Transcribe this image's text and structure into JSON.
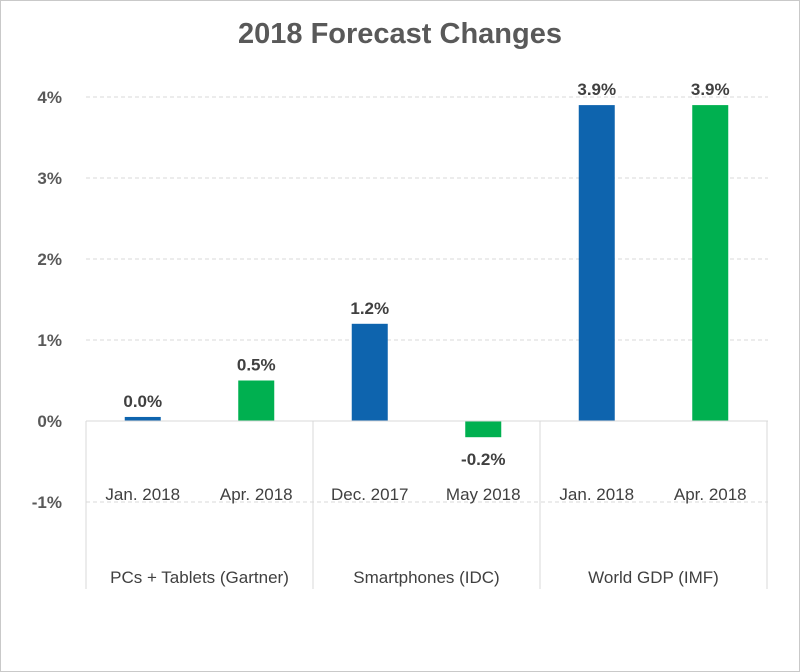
{
  "chart_data": {
    "type": "bar",
    "title": "2018 Forecast Changes",
    "xlabel": "",
    "ylabel": "",
    "ylim": [
      -1,
      4
    ],
    "y_ticks": [
      "-1%",
      "0%",
      "1%",
      "2%",
      "3%",
      "4%"
    ],
    "y_tick_values": [
      -1,
      0,
      1,
      2,
      3,
      4
    ],
    "grid": true,
    "groups": [
      {
        "name": "PCs + Tablets (Gartner)",
        "categories": [
          "Jan. 2018",
          "Apr. 2018"
        ]
      },
      {
        "name": "Smartphones (IDC)",
        "categories": [
          "Dec. 2017",
          "May 2018"
        ]
      },
      {
        "name": "World GDP (IMF)",
        "categories": [
          "Jan. 2018",
          "Apr. 2018"
        ]
      }
    ],
    "categories": [
      "Jan. 2018",
      "Apr. 2018",
      "Dec. 2017",
      "May 2018",
      "Jan. 2018",
      "Apr. 2018"
    ],
    "values": [
      0.05,
      0.5,
      1.2,
      -0.2,
      3.9,
      3.9
    ],
    "data_labels": [
      "0.0%",
      "0.5%",
      "1.2%",
      "-0.2%",
      "3.9%",
      "3.9%"
    ],
    "colors": [
      "#0e64ae",
      "#00b050",
      "#0e64ae",
      "#00b050",
      "#0e64ae",
      "#00b050"
    ],
    "legend": "none"
  }
}
